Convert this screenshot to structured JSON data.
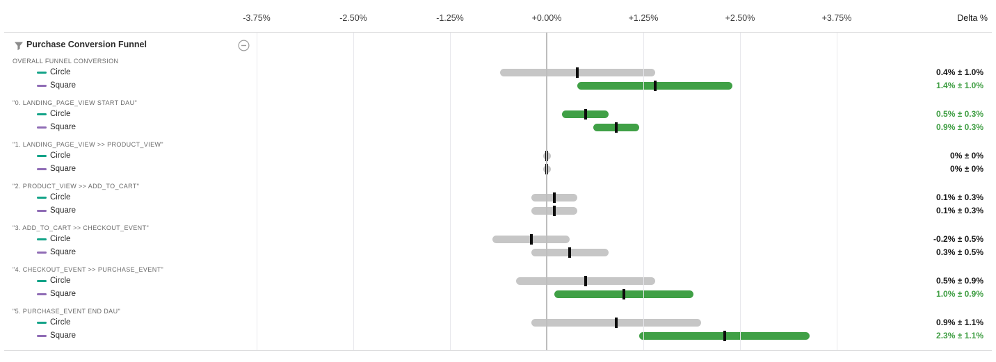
{
  "axis": {
    "delta_header": "Delta %",
    "ticks": [
      {
        "value": -3.75,
        "label": "-3.75%"
      },
      {
        "value": -2.5,
        "label": "-2.50%"
      },
      {
        "value": -1.25,
        "label": "-1.25%"
      },
      {
        "value": 0.0,
        "label": "+0.00%"
      },
      {
        "value": 1.25,
        "label": "+1.25%"
      },
      {
        "value": 2.5,
        "label": "+2.50%"
      },
      {
        "value": 3.75,
        "label": "+3.75%"
      }
    ]
  },
  "panel": {
    "title": "Purchase Conversion Funnel",
    "filter_icon": "funnel-filter-icon",
    "collapse_icon": "minus-circle-icon"
  },
  "legend": {
    "colors": {
      "circle": "#13a388",
      "square": "#8f6cb5"
    }
  },
  "colors": {
    "significant_green": "#40a046",
    "nonsignificant_gray": "#c6c6c6",
    "point_estimate_tick": "#0c0c0c",
    "zero_gridline": "#bdbdbd",
    "gridline": "#e8e8ec"
  },
  "chart_data": {
    "type": "interval",
    "title": "Purchase Conversion Funnel",
    "xlabel": "Delta %",
    "xlim": [
      -4.6,
      5.1
    ],
    "grid": "vertical",
    "groups": [
      {
        "label": "OVERALL FUNNEL CONVERSION",
        "rows": [
          {
            "variant": "Circle",
            "value": 0.4,
            "ci": 1.0,
            "display": "0.4% ± 1.0%",
            "significant": false
          },
          {
            "variant": "Square",
            "value": 1.4,
            "ci": 1.0,
            "display": "1.4% ± 1.0%",
            "significant": true
          }
        ]
      },
      {
        "label": "\"0. LANDING_PAGE_VIEW START DAU\"",
        "rows": [
          {
            "variant": "Circle",
            "value": 0.5,
            "ci": 0.3,
            "display": "0.5% ± 0.3%",
            "significant": true
          },
          {
            "variant": "Square",
            "value": 0.9,
            "ci": 0.3,
            "display": "0.9% ± 0.3%",
            "significant": true
          }
        ]
      },
      {
        "label": "\"1. LANDING_PAGE_VIEW >> PRODUCT_VIEW\"",
        "rows": [
          {
            "variant": "Circle",
            "value": 0.0,
            "ci": 0.0,
            "display": "0% ± 0%",
            "significant": false
          },
          {
            "variant": "Square",
            "value": 0.0,
            "ci": 0.0,
            "display": "0% ± 0%",
            "significant": false
          }
        ]
      },
      {
        "label": "\"2. PRODUCT_VIEW >> ADD_TO_CART\"",
        "rows": [
          {
            "variant": "Circle",
            "value": 0.1,
            "ci": 0.3,
            "display": "0.1% ± 0.3%",
            "significant": false
          },
          {
            "variant": "Square",
            "value": 0.1,
            "ci": 0.3,
            "display": "0.1% ± 0.3%",
            "significant": false
          }
        ]
      },
      {
        "label": "\"3. ADD_TO_CART >> CHECKOUT_EVENT\"",
        "rows": [
          {
            "variant": "Circle",
            "value": -0.2,
            "ci": 0.5,
            "display": "-0.2% ± 0.5%",
            "significant": false
          },
          {
            "variant": "Square",
            "value": 0.3,
            "ci": 0.5,
            "display": "0.3% ± 0.5%",
            "significant": false
          }
        ]
      },
      {
        "label": "\"4. CHECKOUT_EVENT >> PURCHASE_EVENT\"",
        "rows": [
          {
            "variant": "Circle",
            "value": 0.5,
            "ci": 0.9,
            "display": "0.5% ± 0.9%",
            "significant": false
          },
          {
            "variant": "Square",
            "value": 1.0,
            "ci": 0.9,
            "display": "1.0% ± 0.9%",
            "significant": true
          }
        ]
      },
      {
        "label": "\"5. PURCHASE_EVENT END DAU\"",
        "rows": [
          {
            "variant": "Circle",
            "value": 0.9,
            "ci": 1.1,
            "display": "0.9% ± 1.1%",
            "significant": false
          },
          {
            "variant": "Square",
            "value": 2.3,
            "ci": 1.1,
            "display": "2.3% ± 1.1%",
            "significant": true
          }
        ]
      }
    ]
  }
}
